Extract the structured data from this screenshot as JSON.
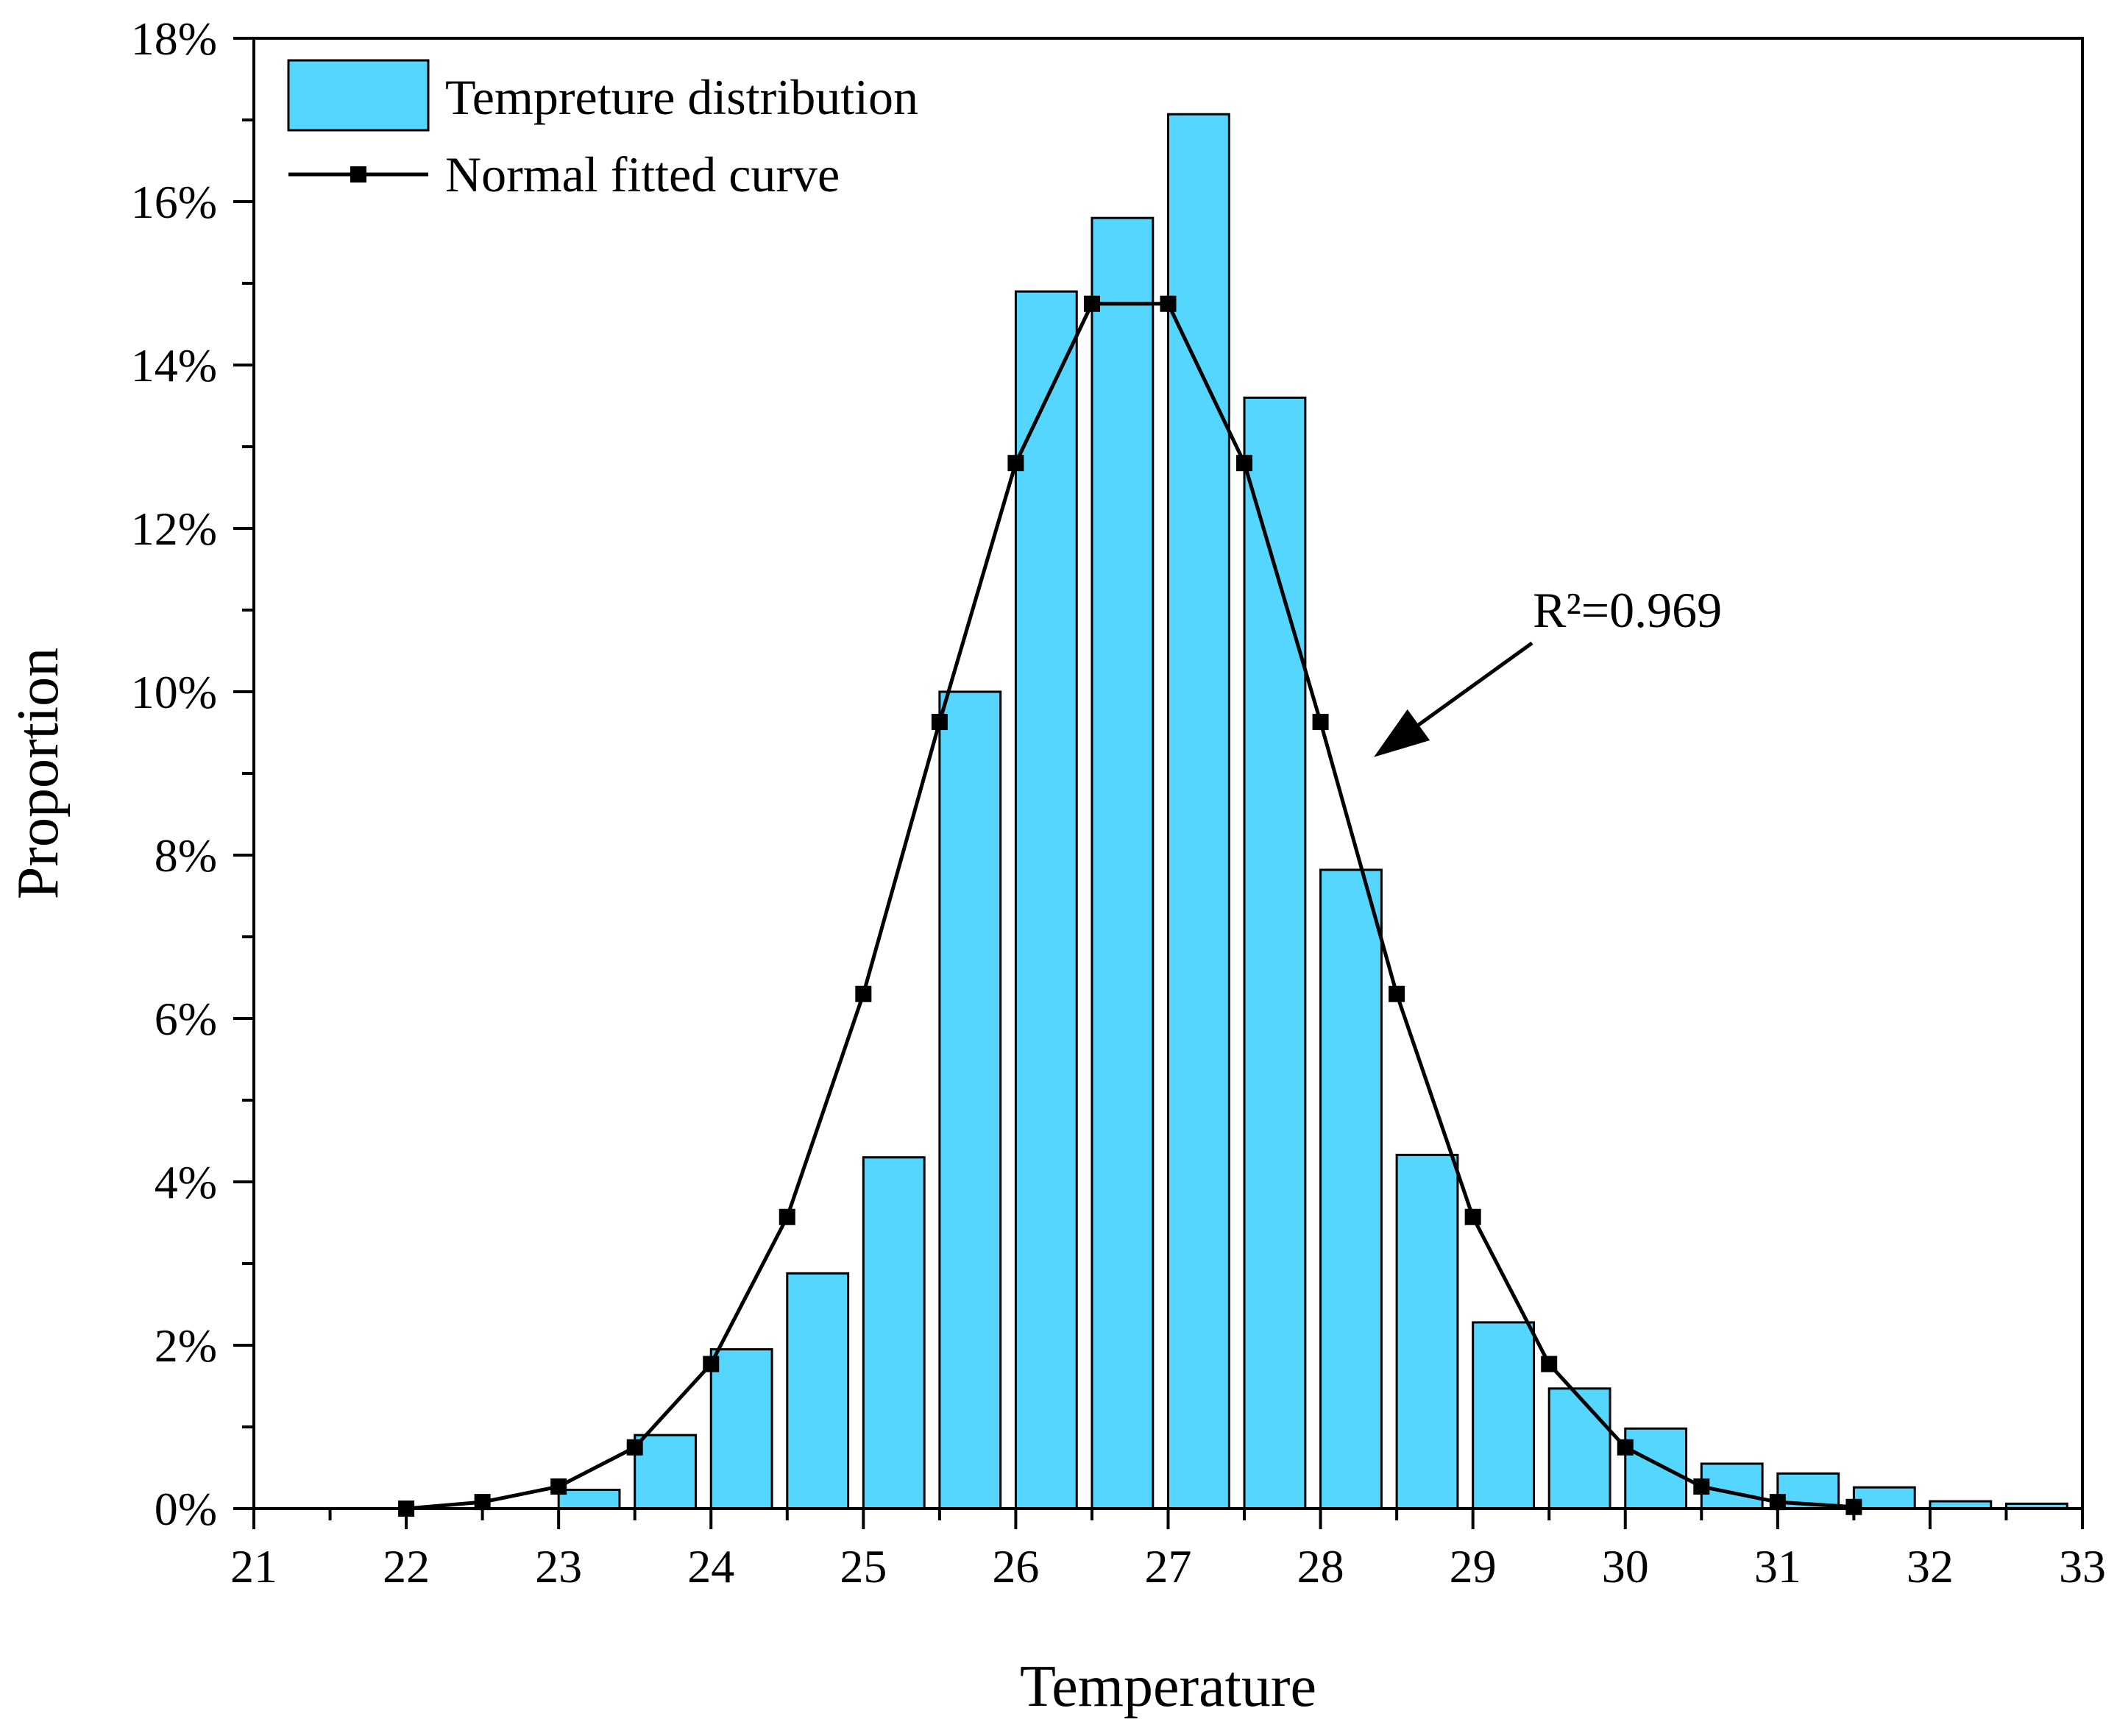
{
  "chart_data": {
    "type": "bar",
    "title": "",
    "xlabel": "Temperature",
    "ylabel": "Proportion",
    "xlim": [
      21,
      33
    ],
    "ylim": [
      0,
      18
    ],
    "x_ticks": [
      "21",
      "22",
      "23",
      "24",
      "25",
      "26",
      "27",
      "28",
      "29",
      "30",
      "31",
      "32",
      "33"
    ],
    "y_ticks": [
      "0%",
      "2%",
      "4%",
      "6%",
      "8%",
      "10%",
      "12%",
      "14%",
      "16%",
      "18%"
    ],
    "bar_color": "#55D6FF",
    "line_color": "#000000",
    "legend_position": "top-left",
    "series": [
      {
        "name": "Tempreture distribution",
        "kind": "bar",
        "x": [
          23.2,
          23.7,
          24.2,
          24.7,
          25.2,
          25.7,
          26.2,
          26.7,
          27.2,
          27.7,
          28.2,
          28.7,
          29.2,
          29.7,
          30.2,
          30.7,
          31.2,
          31.7,
          32.2,
          32.7
        ],
        "values": [
          0.23,
          0.9,
          1.95,
          2.88,
          4.3,
          10.0,
          14.9,
          15.8,
          17.07,
          13.6,
          7.82,
          4.33,
          2.28,
          1.47,
          0.98,
          0.55,
          0.43,
          0.26,
          0.09,
          0.06
        ]
      },
      {
        "name": "Normal fitted curve",
        "kind": "line",
        "x": [
          22,
          22.5,
          23,
          23.5,
          24,
          24.5,
          25,
          25.5,
          26,
          26.5,
          27,
          27.5,
          28,
          28.5,
          29,
          29.5,
          30,
          30.5,
          31,
          31.5
        ],
        "values": [
          0.0,
          0.08,
          0.27,
          0.75,
          1.77,
          3.57,
          6.3,
          9.63,
          12.8,
          14.75,
          14.75,
          12.8,
          9.63,
          6.3,
          3.57,
          1.77,
          0.75,
          0.27,
          0.08,
          0.02
        ]
      }
    ],
    "annotation": {
      "text": "R²=0.969",
      "points_to_x": 28.35,
      "points_to_y": 9.2
    }
  }
}
